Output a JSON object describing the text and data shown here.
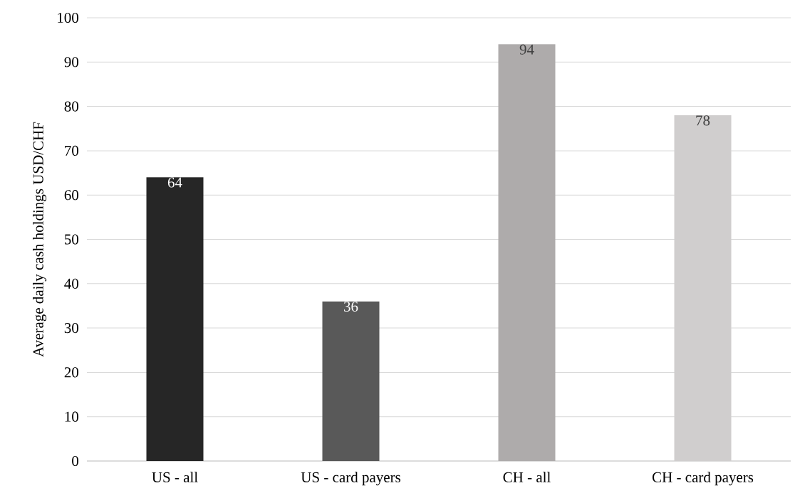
{
  "chart_data": {
    "type": "bar",
    "ylabel": "Average daily cash holdings USD/CHF",
    "categories": [
      "US - all",
      "US - card payers",
      "CH - all",
      "CH - card payers"
    ],
    "values": [
      64,
      36,
      94,
      78
    ],
    "colors": [
      "#262626",
      "#595959",
      "#aeabab",
      "#d0cece"
    ],
    "ylim": [
      0,
      100
    ],
    "yticks": [
      0,
      10,
      20,
      30,
      40,
      50,
      60,
      70,
      80,
      90,
      100
    ],
    "grid": "y",
    "data_labels": true
  }
}
